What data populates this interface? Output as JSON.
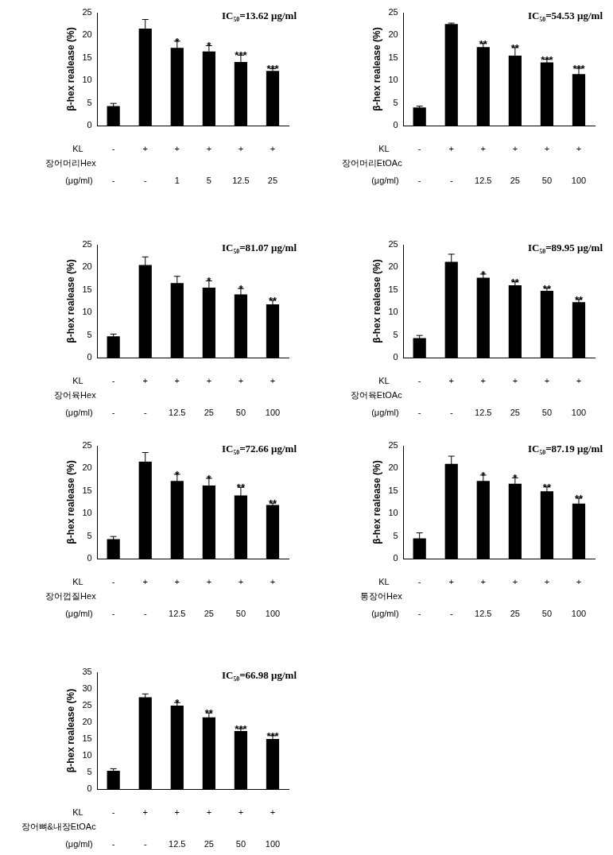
{
  "chart_data": [
    {
      "type": "bar",
      "annotation": "IC₅₀=13.62 μg/ml",
      "y_label": "β-hex realease (%)",
      "row_labels": [
        "KL",
        "장어머리Hex",
        "(μg/ml)"
      ],
      "kl": [
        "-",
        "+",
        "+",
        "+",
        "+",
        "+"
      ],
      "categories": [
        "-",
        "-",
        "1",
        "5",
        "12.5",
        "25"
      ],
      "values": [
        4.3,
        21.5,
        17.2,
        16.4,
        14.1,
        12.1
      ],
      "errors": [
        0.6,
        2.0,
        1.5,
        1.3,
        1.5,
        0.5
      ],
      "significance": [
        null,
        null,
        "*",
        "*",
        "***",
        "***"
      ],
      "color": "#000000",
      "ylim": [
        0,
        25
      ],
      "yticks": [
        0,
        5,
        10,
        15,
        20,
        25
      ],
      "grid": false
    },
    {
      "type": "bar",
      "annotation": "IC₅₀=54.53 μg/ml",
      "y_label": "β-hex realease (%)",
      "row_labels": [
        "KL",
        "장어머리EtOAc",
        "(μg/ml)"
      ],
      "kl": [
        "-",
        "+",
        "+",
        "+",
        "+",
        "+"
      ],
      "categories": [
        "-",
        "-",
        "12.5",
        "25",
        "50",
        "100"
      ],
      "values": [
        4.0,
        22.5,
        17.4,
        15.5,
        14.0,
        11.4
      ],
      "errors": [
        0.3,
        0.2,
        0.8,
        1.8,
        0.7,
        1.3
      ],
      "significance": [
        null,
        null,
        "**",
        "**",
        "***",
        "***"
      ],
      "color": "#000000",
      "ylim": [
        0,
        25
      ],
      "yticks": [
        0,
        5,
        10,
        15,
        20,
        25
      ],
      "grid": false
    },
    {
      "type": "bar",
      "annotation": "IC₅₀=81.07 μg/ml",
      "y_label": "β-hex realease (%)",
      "row_labels": [
        "KL",
        "장어육Hex",
        "(μg/ml)"
      ],
      "kl": [
        "-",
        "+",
        "+",
        "+",
        "+",
        "+"
      ],
      "categories": [
        "-",
        "-",
        "12.5",
        "25",
        "50",
        "100"
      ],
      "values": [
        4.7,
        20.5,
        16.5,
        15.5,
        14.0,
        11.8
      ],
      "errors": [
        0.5,
        1.8,
        1.5,
        1.5,
        1.3,
        0.9
      ],
      "significance": [
        null,
        null,
        null,
        "*",
        "*",
        "**"
      ],
      "color": "#000000",
      "ylim": [
        0,
        25
      ],
      "yticks": [
        0,
        5,
        10,
        15,
        20,
        25
      ],
      "grid": false
    },
    {
      "type": "bar",
      "annotation": "IC₅₀=89.95 μg/ml",
      "y_label": "β-hex realease (%)",
      "row_labels": [
        "KL",
        "장어육EtOAc",
        "(μg/ml)"
      ],
      "kl": [
        "-",
        "+",
        "+",
        "+",
        "+",
        "+"
      ],
      "categories": [
        "-",
        "-",
        "12.5",
        "25",
        "50",
        "100"
      ],
      "values": [
        4.3,
        21.2,
        17.7,
        16.0,
        14.8,
        12.3
      ],
      "errors": [
        0.6,
        1.7,
        0.8,
        0.8,
        0.6,
        0.6
      ],
      "significance": [
        null,
        null,
        "*",
        "**",
        "**",
        "**"
      ],
      "color": "#000000",
      "ylim": [
        0,
        25
      ],
      "yticks": [
        0,
        5,
        10,
        15,
        20,
        25
      ],
      "grid": false
    },
    {
      "type": "bar",
      "annotation": "IC₅₀=72.66 μg/ml",
      "y_label": "β-hex realease (%)",
      "row_labels": [
        "KL",
        "장어껍질Hex",
        "(μg/ml)"
      ],
      "kl": [
        "-",
        "+",
        "+",
        "+",
        "+",
        "+"
      ],
      "categories": [
        "-",
        "-",
        "12.5",
        "25",
        "50",
        "100"
      ],
      "values": [
        4.3,
        21.5,
        17.2,
        16.2,
        14.0,
        11.9
      ],
      "errors": [
        0.6,
        2.0,
        1.5,
        1.6,
        1.8,
        0.4
      ],
      "significance": [
        null,
        null,
        "*",
        "*",
        "**",
        "**"
      ],
      "color": "#000000",
      "ylim": [
        0,
        25
      ],
      "yticks": [
        0,
        5,
        10,
        15,
        20,
        25
      ],
      "grid": false
    },
    {
      "type": "bar",
      "annotation": "IC₅₀=87.19 μg/ml",
      "y_label": "β-hex realease (%)",
      "row_labels": [
        "KL",
        "통장어Hex",
        "(μg/ml)"
      ],
      "kl": [
        "-",
        "+",
        "+",
        "+",
        "+",
        "+"
      ],
      "categories": [
        "-",
        "-",
        "12.5",
        "25",
        "50",
        "100"
      ],
      "values": [
        4.5,
        21.0,
        17.2,
        16.6,
        14.9,
        12.2
      ],
      "errors": [
        1.2,
        1.7,
        1.3,
        1.3,
        1.0,
        1.2
      ],
      "significance": [
        null,
        null,
        "*",
        "*",
        "**",
        "**"
      ],
      "color": "#000000",
      "ylim": [
        0,
        25
      ],
      "yticks": [
        0,
        5,
        10,
        15,
        20,
        25
      ],
      "grid": false
    },
    {
      "type": "bar",
      "annotation": "IC₅₀=66.98 μg/ml",
      "y_label": "β-hex realease (%)",
      "row_labels": [
        "KL",
        "장어뼈&내장EtOAc",
        "(μg/ml)"
      ],
      "kl": [
        "-",
        "+",
        "+",
        "+",
        "+",
        "+"
      ],
      "categories": [
        "-",
        "-",
        "12.5",
        "25",
        "50",
        "100"
      ],
      "values": [
        5.5,
        27.5,
        25.0,
        21.5,
        17.4,
        15.0
      ],
      "errors": [
        0.6,
        1.0,
        0.9,
        1.3,
        0.7,
        1.0
      ],
      "significance": [
        null,
        null,
        "*",
        "**",
        "***",
        "***"
      ],
      "color": "#000000",
      "ylim": [
        0,
        35
      ],
      "yticks": [
        0,
        5,
        10,
        15,
        20,
        25,
        30,
        35
      ],
      "grid": false
    }
  ]
}
